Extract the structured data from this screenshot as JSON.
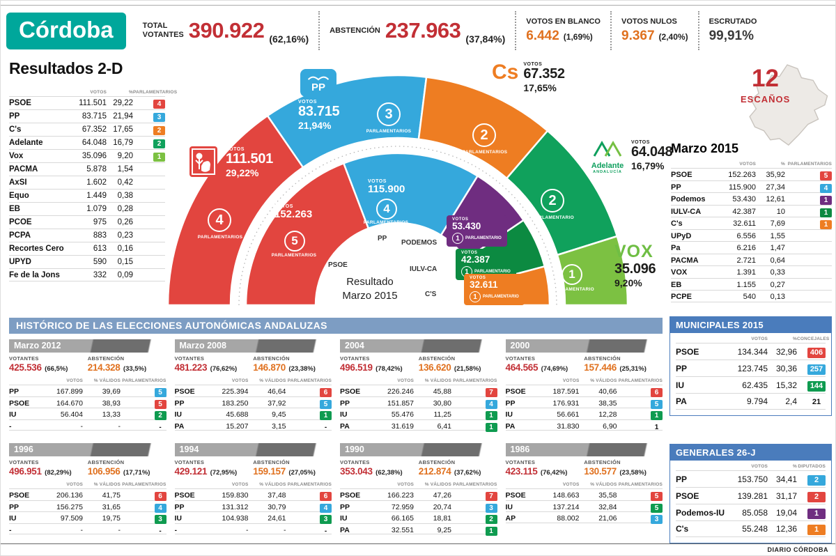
{
  "header": {
    "city": "Córdoba",
    "total_label_top": "TOTAL",
    "total_label_bottom": "VOTANTES",
    "total_value": "390.922",
    "total_pct": "(62,16%)",
    "abstencion_label": "ABSTENCIÓN",
    "abstencion_value": "237.963",
    "abstencion_pct": "(37,84%)",
    "blanco_label": "VOTOS EN BLANCO",
    "blanco_value": "6.442",
    "blanco_pct": "(1,69%)",
    "nulos_label": "VOTOS NULOS",
    "nulos_value": "9.367",
    "nulos_pct": "(2,40%)",
    "escrutado_label": "ESCRUTADO",
    "escrutado_value": "99,91%"
  },
  "results2d": {
    "title": "Resultados 2-D",
    "headers": {
      "votos": "VOTOS",
      "pct": "%",
      "seats": "PARLAMENTARIOS"
    },
    "rows": [
      {
        "party": "PSOE",
        "votes": "111.501",
        "pct": "29,22",
        "seats": "4",
        "color": "#e2453f"
      },
      {
        "party": "PP",
        "votes": "83.715",
        "pct": "21,94",
        "seats": "3",
        "color": "#35a8dc"
      },
      {
        "party": "C's",
        "votes": "67.352",
        "pct": "17,65",
        "seats": "2",
        "color": "#ee7d22"
      },
      {
        "party": "Adelante",
        "votes": "64.048",
        "pct": "16,79",
        "seats": "2",
        "color": "#10a15c"
      },
      {
        "party": "Vox",
        "votes": "35.096",
        "pct": "9,20",
        "seats": "1",
        "color": "#7cc142"
      },
      {
        "party": "PACMA",
        "votes": "5.878",
        "pct": "1,54"
      },
      {
        "party": "AxSÍ",
        "votes": "1.602",
        "pct": "0,42"
      },
      {
        "party": "Equo",
        "votes": "1.449",
        "pct": "0,38"
      },
      {
        "party": "EB",
        "votes": "1.079",
        "pct": "0,28"
      },
      {
        "party": "PCOE",
        "votes": "975",
        "pct": "0,26"
      },
      {
        "party": "PCPA",
        "votes": "883",
        "pct": "0,23"
      },
      {
        "party": "Recortes Cero",
        "votes": "613",
        "pct": "0,16"
      },
      {
        "party": "UPYD",
        "votes": "590",
        "pct": "0,15"
      },
      {
        "party": "Fe de la Jons",
        "votes": "332",
        "pct": "0,09"
      }
    ]
  },
  "escanos": {
    "value": "12",
    "label": "ESCAÑOS"
  },
  "marzo2015": {
    "title": "Marzo 2015",
    "headers": {
      "votos": "VOTOS",
      "pct": "%",
      "seats": "PARLAMENTARIOS"
    },
    "rows": [
      {
        "party": "PSOE",
        "votes": "152.263",
        "pct": "35,92",
        "seats": "5",
        "color": "#e2453f"
      },
      {
        "party": "PP",
        "votes": "115.900",
        "pct": "27,34",
        "seats": "4",
        "color": "#35a8dc"
      },
      {
        "party": "Podemos",
        "votes": "53.430",
        "pct": "12,61",
        "seats": "1",
        "color": "#6f2d80"
      },
      {
        "party": "IULV-CA",
        "votes": "42.387",
        "pct": "10",
        "seats": "1",
        "color": "#0c8a41"
      },
      {
        "party": "C's",
        "votes": "32.611",
        "pct": "7,69",
        "seats": "1",
        "color": "#ee7d22"
      },
      {
        "party": "UPyD",
        "votes": "6.556",
        "pct": "1,55"
      },
      {
        "party": "Pa",
        "votes": "6.216",
        "pct": "1,47"
      },
      {
        "party": "PACMA",
        "votes": "2.721",
        "pct": "0,64"
      },
      {
        "party": "VOX",
        "votes": "1.391",
        "pct": "0,33"
      },
      {
        "party": "EB",
        "votes": "1.155",
        "pct": "0,27"
      },
      {
        "party": "PCPE",
        "votes": "540",
        "pct": "0,13"
      }
    ]
  },
  "chart_data": {
    "type": "half-donut",
    "votos_word": "VOTOS",
    "center": {
      "line1": "Resultado",
      "line2": "Marzo 2015"
    },
    "logos": {
      "pp": "PP",
      "cs": "Cs",
      "vox": "VOX",
      "adelante_line1": "Adelante",
      "adelante_line2": "ANDALUCÍA"
    },
    "rings": {
      "outer": [
        {
          "party": "PSOE",
          "votes": 111501,
          "votes_label": "111.501",
          "pct": "29,22%",
          "seats": "4",
          "seats_word": "PARLAMENTARIOS",
          "color": "#e2453f"
        },
        {
          "party": "PP",
          "votes": 83715,
          "votes_label": "83.715",
          "pct": "21,94%",
          "seats": "3",
          "seats_word": "PARLAMENTARIOS",
          "color": "#35a8dc"
        },
        {
          "party": "C's",
          "votes": 67352,
          "votes_label": "67.352",
          "pct": "17,65%",
          "seats": "2",
          "seats_word": "PARLAMENTARIOS",
          "color": "#ee7d22"
        },
        {
          "party": "Adelante Andalucía",
          "votes": 64048,
          "votes_label": "64.048",
          "pct": "16,79%",
          "seats": "2",
          "seats_word": "PARLAMENTARIO",
          "color": "#10a15c"
        },
        {
          "party": "VOX",
          "votes": 35096,
          "votes_label": "35.096",
          "pct": "9,20%",
          "seats": "1",
          "seats_word": "PARLAMENTARIO",
          "color": "#7cc142"
        }
      ],
      "inner": [
        {
          "party": "PSOE",
          "votes": 152263,
          "votes_label": "152.263",
          "seats": "5",
          "seats_word": "PARLAMENTARIOS",
          "color": "#e2453f"
        },
        {
          "party": "PP",
          "votes": 115900,
          "votes_label": "115.900",
          "seats": "4",
          "seats_word": "PARLAMENTARIOS",
          "color": "#35a8dc"
        },
        {
          "party": "PODEMOS",
          "votes": 53430,
          "votes_label": "53.430",
          "seats": "1",
          "seats_word": "PARLAMENTARIO",
          "color": "#6f2d80"
        },
        {
          "party": "IULV-CA",
          "votes": 42387,
          "votes_label": "42.387",
          "seats": "1",
          "seats_word": "PARLAMENTARIO",
          "color": "#0c8a41"
        },
        {
          "party": "C'S",
          "votes": 32611,
          "votes_label": "32.611",
          "seats": "1",
          "seats_word": "PARLAMENTARIO",
          "color": "#ee7d22"
        }
      ]
    }
  },
  "historico": {
    "title": "HISTÓRICO DE LAS ELECCIONES AUTONÓMICAS ANDALUZAS",
    "votantes_label": "VOTANTES",
    "abstencion_label": "ABSTENCIÓN",
    "headers": {
      "votos": "VOTOS",
      "pct": "% VÁLIDOS",
      "seats": "PARLAMENTARIOS"
    },
    "blocks": [
      {
        "year": "Marzo 2012",
        "votantes": "425.536",
        "votantes_pct": "(66,5%)",
        "abstencion": "214.328",
        "abstencion_pct": "(33,5%)",
        "rows": [
          {
            "party": "PP",
            "votes": "167.899",
            "pct": "39,69",
            "seats": "5",
            "color": "#35a8dc"
          },
          {
            "party": "PSOE",
            "votes": "164.670",
            "pct": "38,93",
            "seats": "5",
            "color": "#e2453f"
          },
          {
            "party": "IU",
            "votes": "56.404",
            "pct": "13,33",
            "seats": "2",
            "color": "#0f9b50"
          },
          {
            "party": "-",
            "votes": "-",
            "pct": "-",
            "seats": "-"
          }
        ]
      },
      {
        "year": "Marzo 2008",
        "votantes": "481.223",
        "votantes_pct": "(76,62%)",
        "abstencion": "146.870",
        "abstencion_pct": "(23,38%)",
        "rows": [
          {
            "party": "PSOE",
            "votes": "225.394",
            "pct": "46,64",
            "seats": "6",
            "color": "#e2453f"
          },
          {
            "party": "PP",
            "votes": "183.250",
            "pct": "37,92",
            "seats": "5",
            "color": "#35a8dc"
          },
          {
            "party": "IU",
            "votes": "45.688",
            "pct": "9,45",
            "seats": "1",
            "color": "#0f9b50"
          },
          {
            "party": "PA",
            "votes": "15.207",
            "pct": "3,15",
            "seats": "-"
          }
        ]
      },
      {
        "year": "2004",
        "votantes": "496.519",
        "votantes_pct": "(78,42%)",
        "abstencion": "136.620",
        "abstencion_pct": "(21,58%)",
        "rows": [
          {
            "party": "PSOE",
            "votes": "226.246",
            "pct": "45,88",
            "seats": "7",
            "color": "#e2453f"
          },
          {
            "party": "PP",
            "votes": "151.857",
            "pct": "30,80",
            "seats": "4",
            "color": "#35a8dc"
          },
          {
            "party": "IU",
            "votes": "55.476",
            "pct": "11,25",
            "seats": "1",
            "color": "#0f9b50"
          },
          {
            "party": "PA",
            "votes": "31.619",
            "pct": "6,41",
            "seats": "1",
            "color": "#0f9b50"
          }
        ]
      },
      {
        "year": "2000",
        "votantes": "464.565",
        "votantes_pct": "(74,69%)",
        "abstencion": "157.446",
        "abstencion_pct": "(25,31%)",
        "rows": [
          {
            "party": "PSOE",
            "votes": "187.591",
            "pct": "40,66",
            "seats": "6",
            "color": "#e2453f"
          },
          {
            "party": "PP",
            "votes": "176.931",
            "pct": "38,35",
            "seats": "5",
            "color": "#35a8dc"
          },
          {
            "party": "IU",
            "votes": "56.661",
            "pct": "12,28",
            "seats": "1",
            "color": "#0f9b50"
          },
          {
            "party": "PA",
            "votes": "31.830",
            "pct": "6,90",
            "seats": "1"
          }
        ]
      },
      {
        "year": "1996",
        "votantes": "496.951",
        "votantes_pct": "(82,29%)",
        "abstencion": "106.956",
        "abstencion_pct": "(17,71%)",
        "rows": [
          {
            "party": "PSOE",
            "votes": "206.136",
            "pct": "41,75",
            "seats": "6",
            "color": "#e2453f"
          },
          {
            "party": "PP",
            "votes": "156.275",
            "pct": "31,65",
            "seats": "4",
            "color": "#35a8dc"
          },
          {
            "party": "IU",
            "votes": "97.509",
            "pct": "19,75",
            "seats": "3",
            "color": "#0f9b50"
          },
          {
            "party": "-",
            "votes": "-",
            "pct": "-",
            "seats": "-"
          }
        ]
      },
      {
        "year": "1994",
        "votantes": "429.121",
        "votantes_pct": "(72,95%)",
        "abstencion": "159.157",
        "abstencion_pct": "(27,05%)",
        "rows": [
          {
            "party": "PSOE",
            "votes": "159.830",
            "pct": "37,48",
            "seats": "6",
            "color": "#e2453f"
          },
          {
            "party": "PP",
            "votes": "131.312",
            "pct": "30,79",
            "seats": "4",
            "color": "#35a8dc"
          },
          {
            "party": "IU",
            "votes": "104.938",
            "pct": "24,61",
            "seats": "3",
            "color": "#0f9b50"
          },
          {
            "party": "-",
            "votes": "-",
            "pct": "-",
            "seats": "-"
          }
        ]
      },
      {
        "year": "1990",
        "votantes": "353.043",
        "votantes_pct": "(62,38%)",
        "abstencion": "212.874",
        "abstencion_pct": "(37,62%)",
        "rows": [
          {
            "party": "PSOE",
            "votes": "166.223",
            "pct": "47,26",
            "seats": "7",
            "color": "#e2453f"
          },
          {
            "party": "PP",
            "votes": "72.959",
            "pct": "20,74",
            "seats": "3",
            "color": "#35a8dc"
          },
          {
            "party": "IU",
            "votes": "66.165",
            "pct": "18,81",
            "seats": "2",
            "color": "#0f9b50"
          },
          {
            "party": "PA",
            "votes": "32.551",
            "pct": "9,25",
            "seats": "1",
            "color": "#0f9b50"
          }
        ]
      },
      {
        "year": "1986",
        "votantes": "423.115",
        "votantes_pct": "(76,42%)",
        "abstencion": "130.577",
        "abstencion_pct": "(23,58%)",
        "rows": [
          {
            "party": "PSOE",
            "votes": "148.663",
            "pct": "35,58",
            "seats": "5",
            "color": "#e2453f"
          },
          {
            "party": "IU",
            "votes": "137.214",
            "pct": "32,84",
            "seats": "5",
            "color": "#0f9b50"
          },
          {
            "party": "AP",
            "votes": "88.002",
            "pct": "21,06",
            "seats": "3",
            "color": "#35a8dc"
          }
        ]
      }
    ]
  },
  "municipales": {
    "title": "MUNICIPALES 2015",
    "headers": {
      "votos": "VOTOS",
      "pct": "%",
      "seats": "CONCEJALES"
    },
    "rows": [
      {
        "party": "PSOE",
        "votes": "134.344",
        "pct": "32,96",
        "seats": "406",
        "color": "#e2453f"
      },
      {
        "party": "PP",
        "votes": "123.745",
        "pct": "30,36",
        "seats": "257",
        "color": "#35a8dc"
      },
      {
        "party": "IU",
        "votes": "62.435",
        "pct": "15,32",
        "seats": "144",
        "color": "#0f9b50"
      },
      {
        "party": "PA",
        "votes": "9.794",
        "pct": "2,4",
        "seats": "21"
      }
    ]
  },
  "generales": {
    "title": "GENERALES 26-J",
    "headers": {
      "votos": "VOTOS",
      "pct": "%",
      "seats": "DIPUTADOS"
    },
    "rows": [
      {
        "party": "PP",
        "votes": "153.750",
        "pct": "34,41",
        "seats": "2",
        "color": "#35a8dc"
      },
      {
        "party": "PSOE",
        "votes": "139.281",
        "pct": "31,17",
        "seats": "2",
        "color": "#e2453f"
      },
      {
        "party": "Podemos-IU",
        "votes": "85.058",
        "pct": "19,04",
        "seats": "1",
        "color": "#6f2d80"
      },
      {
        "party": "C's",
        "votes": "55.248",
        "pct": "12,36",
        "seats": "1",
        "color": "#ee7d22"
      }
    ]
  },
  "footer": {
    "credit": "DIARIO CÓRDOBA"
  }
}
